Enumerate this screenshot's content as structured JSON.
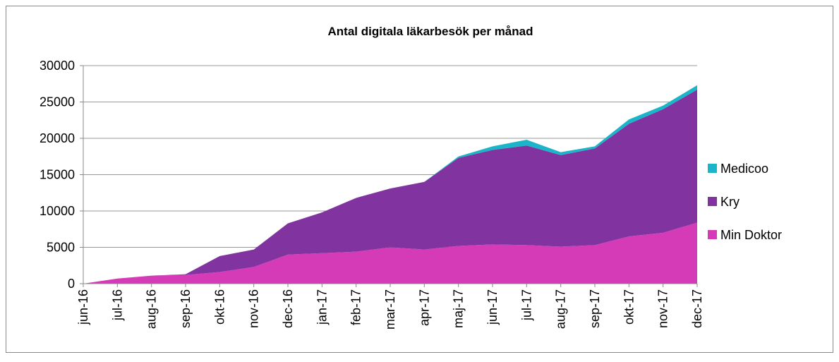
{
  "chart_data": {
    "type": "stacked_area",
    "title": "Antal digitala läkarbesök per månad",
    "categories": [
      "jun-16",
      "jul-16",
      "aug-16",
      "sep-16",
      "okt-16",
      "nov-16",
      "dec-16",
      "jan-17",
      "feb-17",
      "mar-17",
      "apr-17",
      "maj-17",
      "jun-17",
      "jul-17",
      "aug-17",
      "sep-17",
      "okt-17",
      "nov-17",
      "dec-17"
    ],
    "series": [
      {
        "name": "Min Doktor",
        "color": "#d53ab7",
        "values": [
          0,
          700,
          1100,
          1200,
          1600,
          2300,
          4000,
          4200,
          4400,
          5000,
          4700,
          5200,
          5400,
          5300,
          5100,
          5300,
          6500,
          7000,
          8400
        ]
      },
      {
        "name": "Kry",
        "color": "#8133a0",
        "values": [
          0,
          0,
          0,
          100,
          2200,
          2400,
          4300,
          5600,
          7400,
          8100,
          9300,
          12100,
          13000,
          13700,
          12600,
          13300,
          15500,
          17000,
          18300
        ]
      },
      {
        "name": "Medicoo",
        "color": "#1bb5c9",
        "values": [
          0,
          0,
          0,
          0,
          0,
          0,
          0,
          0,
          0,
          0,
          0,
          200,
          500,
          800,
          400,
          300,
          600,
          500,
          600
        ]
      }
    ],
    "ylim": [
      0,
      30000
    ],
    "yticks": [
      0,
      5000,
      10000,
      15000,
      20000,
      25000,
      30000
    ],
    "grid": true
  }
}
